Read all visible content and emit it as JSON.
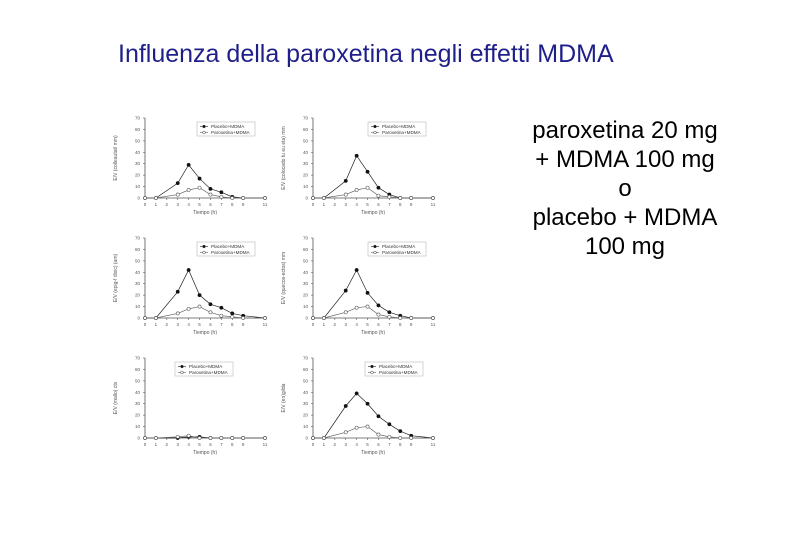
{
  "slide": {
    "title": "Influenza della paroxetina negli effetti MDMA",
    "side_text": [
      "paroxetina 20 mg",
      "+ MDMA 100 mg",
      "o",
      "placebo + MDMA",
      "100 mg"
    ]
  },
  "chart_data": [
    {
      "type": "line",
      "ylabel": "E/V (colleautat/ mm)",
      "xlabel": "Tiempo (h)",
      "ylim": [
        0,
        70
      ],
      "x": [
        0,
        1,
        3,
        4,
        5,
        6,
        7,
        8,
        9,
        11
      ],
      "series": [
        {
          "name": "Placebo+MDMA",
          "values": [
            0,
            0,
            13,
            29,
            17,
            8,
            5,
            1,
            0,
            0
          ]
        },
        {
          "name": "Paroxetina+MDMA",
          "values": [
            0,
            0,
            3,
            7,
            9,
            3,
            1,
            0,
            0,
            0
          ]
        }
      ]
    },
    {
      "type": "line",
      "ylabel": "E/V (colocado tu eu eta) mm",
      "xlabel": "Tiempo (h)",
      "ylim": [
        0,
        70
      ],
      "x": [
        0,
        1,
        3,
        4,
        5,
        6,
        7,
        8,
        9,
        11
      ],
      "series": [
        {
          "name": "Placebo+MDMA",
          "values": [
            0,
            0,
            15,
            37,
            23,
            9,
            3,
            0,
            0,
            0
          ]
        },
        {
          "name": "Paroxetina+MDMA",
          "values": [
            0,
            0,
            3,
            7,
            9,
            2,
            1,
            0,
            0,
            0
          ]
        }
      ]
    },
    {
      "type": "line",
      "ylabel": "E/V (epig-f dixic) (am)",
      "xlabel": "Tiempo (h)",
      "ylim": [
        0,
        70
      ],
      "x": [
        0,
        1,
        3,
        4,
        5,
        6,
        7,
        8,
        9,
        11
      ],
      "series": [
        {
          "name": "Placebo+MDMA",
          "values": [
            0,
            0,
            23,
            42,
            20,
            12,
            9,
            4,
            2,
            0
          ]
        },
        {
          "name": "Paroxetina+MDMA",
          "values": [
            0,
            0,
            4,
            8,
            10,
            5,
            2,
            1,
            0,
            0
          ]
        }
      ]
    },
    {
      "type": "line",
      "ylabel": "E/V (quecos-ectos) mm",
      "xlabel": "Tiempo (h)",
      "ylim": [
        0,
        70
      ],
      "x": [
        0,
        1,
        3,
        4,
        5,
        6,
        7,
        8,
        9,
        11
      ],
      "series": [
        {
          "name": "Placebo+MDMA",
          "values": [
            0,
            0,
            24,
            42,
            22,
            11,
            5,
            2,
            0,
            0
          ]
        },
        {
          "name": "Paroxetina+MDMA",
          "values": [
            0,
            0,
            5,
            9,
            10,
            3,
            1,
            0,
            0,
            0
          ]
        }
      ]
    },
    {
      "type": "line",
      "ylabel": "E/V (mallo) ctx",
      "xlabel": "Tiempo (h)",
      "ylim": [
        0,
        70
      ],
      "x": [
        0,
        1,
        3,
        4,
        5,
        6,
        7,
        8,
        9,
        11
      ],
      "series": [
        {
          "name": "Placebo+MDMA",
          "values": [
            0,
            0,
            0,
            1,
            1,
            0,
            0,
            0,
            0,
            0
          ]
        },
        {
          "name": "Paroxetina+MDMA",
          "values": [
            0,
            0,
            1,
            2,
            0,
            0,
            0,
            0,
            0,
            0
          ]
        }
      ]
    },
    {
      "type": "line",
      "ylabel": "E/V (en)gilda",
      "xlabel": "Tiempo (h)",
      "ylim": [
        0,
        70
      ],
      "x": [
        0,
        1,
        3,
        4,
        5,
        6,
        7,
        8,
        9,
        11
      ],
      "series": [
        {
          "name": "Placebo+MDMA",
          "values": [
            0,
            0,
            28,
            39,
            30,
            19,
            12,
            6,
            2,
            0
          ]
        },
        {
          "name": "Paroxetina+MDMA",
          "values": [
            0,
            0,
            5,
            9,
            10,
            3,
            1,
            0,
            0,
            0
          ]
        }
      ]
    }
  ]
}
